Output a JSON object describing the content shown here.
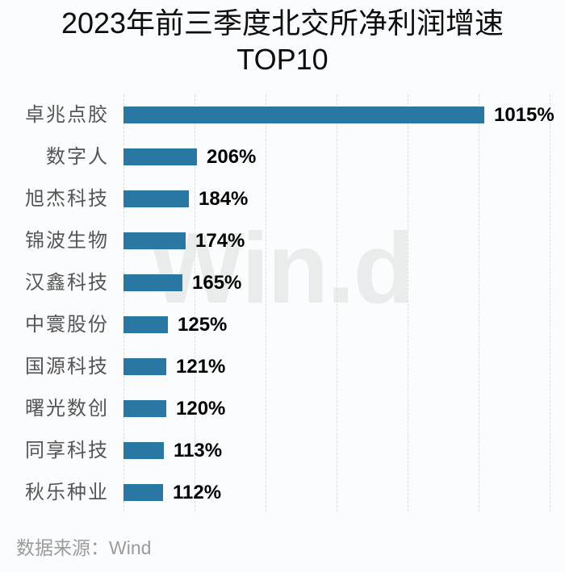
{
  "title": {
    "line1": "2023年前三季度北交所净利润增速",
    "line2": "TOP10"
  },
  "watermark": "Win.d",
  "source_note": "数据来源：Wind",
  "colors": {
    "bar": "#2878a3",
    "category_label": "#555555",
    "value_label": "#000000",
    "gridline": "#d9dde1",
    "background": "#fbfcfd",
    "watermark": "#eaecec",
    "source_note": "#9b9b9b"
  },
  "chart_data": {
    "type": "bar",
    "orientation": "horizontal",
    "title": "2023年前三季度北交所净利润增速TOP10",
    "categories": [
      "卓兆点胶",
      "数字人",
      "旭杰科技",
      "锦波生物",
      "汉鑫科技",
      "中寰股份",
      "国源科技",
      "曙光数创",
      "同享科技",
      "秋乐种业"
    ],
    "values": [
      1015,
      206,
      184,
      174,
      165,
      125,
      121,
      120,
      113,
      112
    ],
    "value_labels": [
      "1015%",
      "206%",
      "184%",
      "174%",
      "165%",
      "125%",
      "121%",
      "120%",
      "113%",
      "112%"
    ],
    "unit": "%",
    "xlim": [
      0,
      1200
    ],
    "gridline_interval": 200,
    "grid": "vertical-dashed",
    "legend": "none",
    "value_labels_position": "end-of-bar",
    "source": "Wind"
  }
}
